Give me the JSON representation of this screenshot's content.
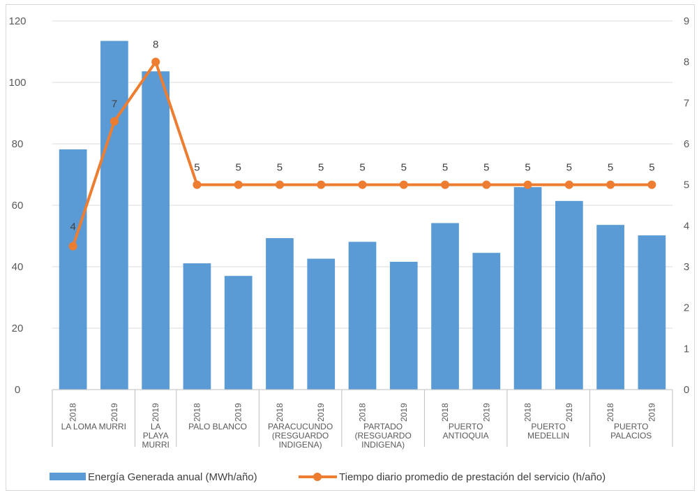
{
  "chart_data": {
    "type": "bar",
    "categories": [
      {
        "year": "2018",
        "group": "LA LOMA MURRI"
      },
      {
        "year": "2019",
        "group": "LA LOMA MURRI"
      },
      {
        "year": "2019",
        "group": "LA PLAYA MURRI"
      },
      {
        "year": "2018",
        "group": "PALO BLANCO"
      },
      {
        "year": "2019",
        "group": "PALO BLANCO"
      },
      {
        "year": "2018",
        "group": "PARACUCUNDO (RESGUARDO INDIGENA)"
      },
      {
        "year": "2019",
        "group": "PARACUCUNDO (RESGUARDO INDIGENA)"
      },
      {
        "year": "2018",
        "group": "PARTADO (RESGUARDO INDIGENA)"
      },
      {
        "year": "2019",
        "group": "PARTADO (RESGUARDO INDIGENA)"
      },
      {
        "year": "2018",
        "group": "PUERTO ANTIOQUIA"
      },
      {
        "year": "2019",
        "group": "PUERTO ANTIOQUIA"
      },
      {
        "year": "2018",
        "group": "PUERTO MEDELLIN"
      },
      {
        "year": "2019",
        "group": "PUERTO MEDELLIN"
      },
      {
        "year": "2018",
        "group": "PUERTO PALACIOS"
      },
      {
        "year": "2019",
        "group": "PUERTO PALACIOS"
      }
    ],
    "groups": [
      {
        "label_lines": [
          "LA LOMA MURRI"
        ],
        "count": 2
      },
      {
        "label_lines": [
          "LA",
          "PLAYA",
          "MURRI"
        ],
        "count": 1
      },
      {
        "label_lines": [
          "PALO BLANCO"
        ],
        "count": 2
      },
      {
        "label_lines": [
          "PARACUCUNDO",
          "(RESGUARDO",
          "INDIGENA)"
        ],
        "count": 2
      },
      {
        "label_lines": [
          "PARTADO",
          "(RESGUARDO",
          "INDIGENA)"
        ],
        "count": 2
      },
      {
        "label_lines": [
          "PUERTO",
          "ANTIOQUIA"
        ],
        "count": 2
      },
      {
        "label_lines": [
          "PUERTO",
          "MEDELLIN"
        ],
        "count": 2
      },
      {
        "label_lines": [
          "PUERTO",
          "PALACIOS"
        ],
        "count": 2
      }
    ],
    "series": [
      {
        "name": "Energía Generada anual (MWh/año)",
        "type": "bar",
        "axis": "left",
        "color": "#5b9bd5",
        "values": [
          78.2,
          113.5,
          103.6,
          41.1,
          37.0,
          49.3,
          42.6,
          48.1,
          41.6,
          54.2,
          44.5,
          65.9,
          61.4,
          53.6,
          50.2
        ]
      },
      {
        "name": "Tiempo diario promedio de prestación del servicio (h/año)",
        "type": "line",
        "axis": "right",
        "color": "#ed7d31",
        "values": [
          3.5,
          6.55,
          8.0,
          5,
          5,
          5,
          5,
          5,
          5,
          5,
          5,
          5,
          5,
          5,
          5
        ],
        "labels": [
          "4",
          "7",
          "8",
          "5",
          "5",
          "5",
          "5",
          "5",
          "5",
          "5",
          "5",
          "5",
          "5",
          "5",
          "5"
        ]
      }
    ],
    "y_left": {
      "min": 0,
      "max": 120,
      "ticks": [
        "0",
        "20",
        "40",
        "60",
        "80",
        "100",
        "120"
      ]
    },
    "y_right": {
      "min": 0,
      "max": 9,
      "ticks": [
        "0",
        "1",
        "2",
        "3",
        "4",
        "5",
        "6",
        "7",
        "8",
        "9"
      ]
    },
    "grid": true,
    "legend_position": "bottom"
  }
}
